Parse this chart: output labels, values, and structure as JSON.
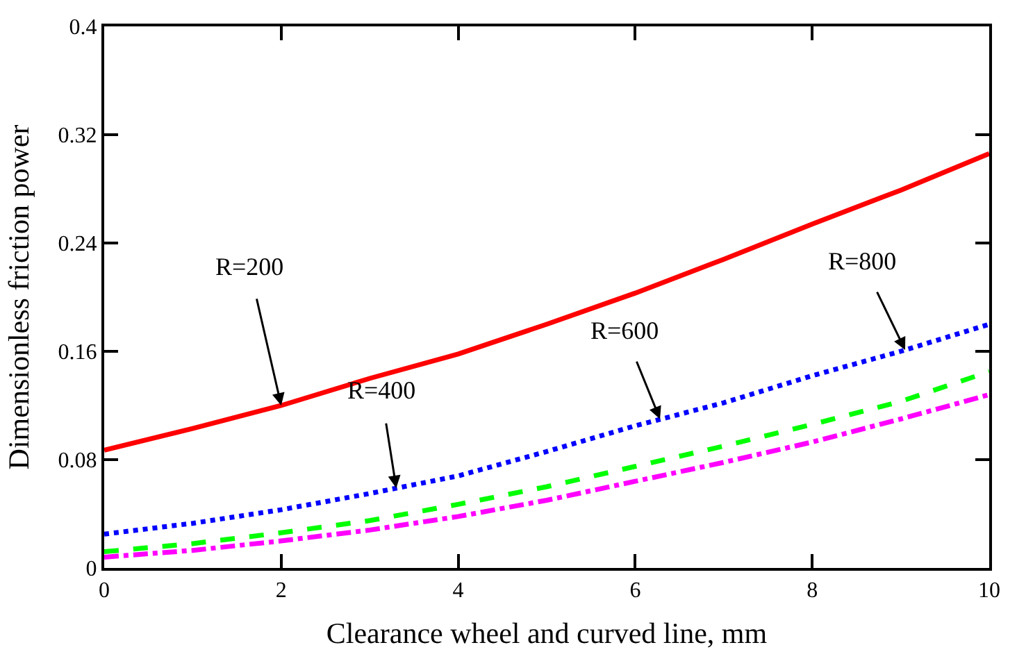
{
  "chart_data": {
    "type": "line",
    "xlabel": "Clearance wheel and curved line, mm",
    "ylabel": "Dimensionless friction power",
    "x": [
      0,
      1,
      2,
      3,
      4,
      5,
      6,
      7,
      8,
      9,
      10
    ],
    "series": [
      {
        "color": "#ff0000",
        "line_style": "solid",
        "values": [
          0.087,
          0.103,
          0.12,
          0.14,
          0.158,
          0.18,
          0.203,
          0.228,
          0.254,
          0.279,
          0.306
        ]
      },
      {
        "color": "#0000ff",
        "line_style": "dotted",
        "values": [
          0.025,
          0.033,
          0.043,
          0.055,
          0.068,
          0.086,
          0.105,
          0.122,
          0.142,
          0.16,
          0.18
        ]
      },
      {
        "color": "#00ff00",
        "line_style": "dashed",
        "values": [
          0.012,
          0.018,
          0.026,
          0.035,
          0.047,
          0.06,
          0.075,
          0.09,
          0.106,
          0.123,
          0.145
        ]
      },
      {
        "color": "#ff00ff",
        "line_style": "dashdot",
        "values": [
          0.008,
          0.013,
          0.02,
          0.028,
          0.038,
          0.05,
          0.064,
          0.078,
          0.093,
          0.11,
          0.128
        ]
      }
    ],
    "annotations": [
      {
        "text": "R=200",
        "x": 2,
        "y": 0.12
      },
      {
        "text": "R=400",
        "x": 3.3,
        "y": 0.059
      },
      {
        "text": "R=600",
        "x": 6.28,
        "y": 0.11
      },
      {
        "text": "R=800",
        "x": 9.05,
        "y": 0.161
      }
    ],
    "xlim": [
      0,
      10
    ],
    "xticks": [
      0,
      2,
      4,
      6,
      8,
      10
    ],
    "ylim": [
      0,
      0.4
    ],
    "yticks": [
      0,
      0.08,
      0.16,
      0.24,
      0.32,
      0.4
    ],
    "marker": "none"
  }
}
